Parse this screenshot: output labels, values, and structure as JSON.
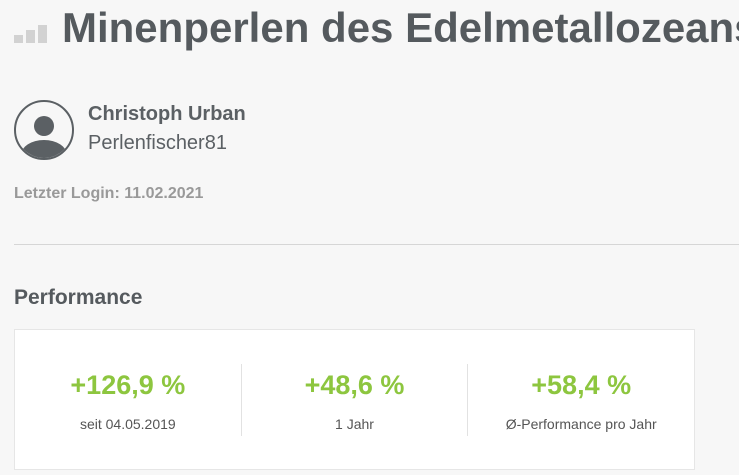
{
  "header": {
    "title": "Minenperlen des Edelmetallozeans",
    "icon": "bar-chart-icon"
  },
  "profile": {
    "name": "Christoph Urban",
    "handle": "Perlenfischer81",
    "avatar_icon": "user-avatar-icon"
  },
  "last_login": {
    "label": "Letzter Login: 11.02.2021"
  },
  "performance": {
    "title": "Performance",
    "accent_color": "#8dc63f",
    "items": [
      {
        "value": "+126,9 %",
        "label": "seit 04.05.2019"
      },
      {
        "value": "+48,6 %",
        "label": "1 Jahr"
      },
      {
        "value": "+58,4 %",
        "label": "Ø-Performance pro Jahr"
      }
    ]
  }
}
